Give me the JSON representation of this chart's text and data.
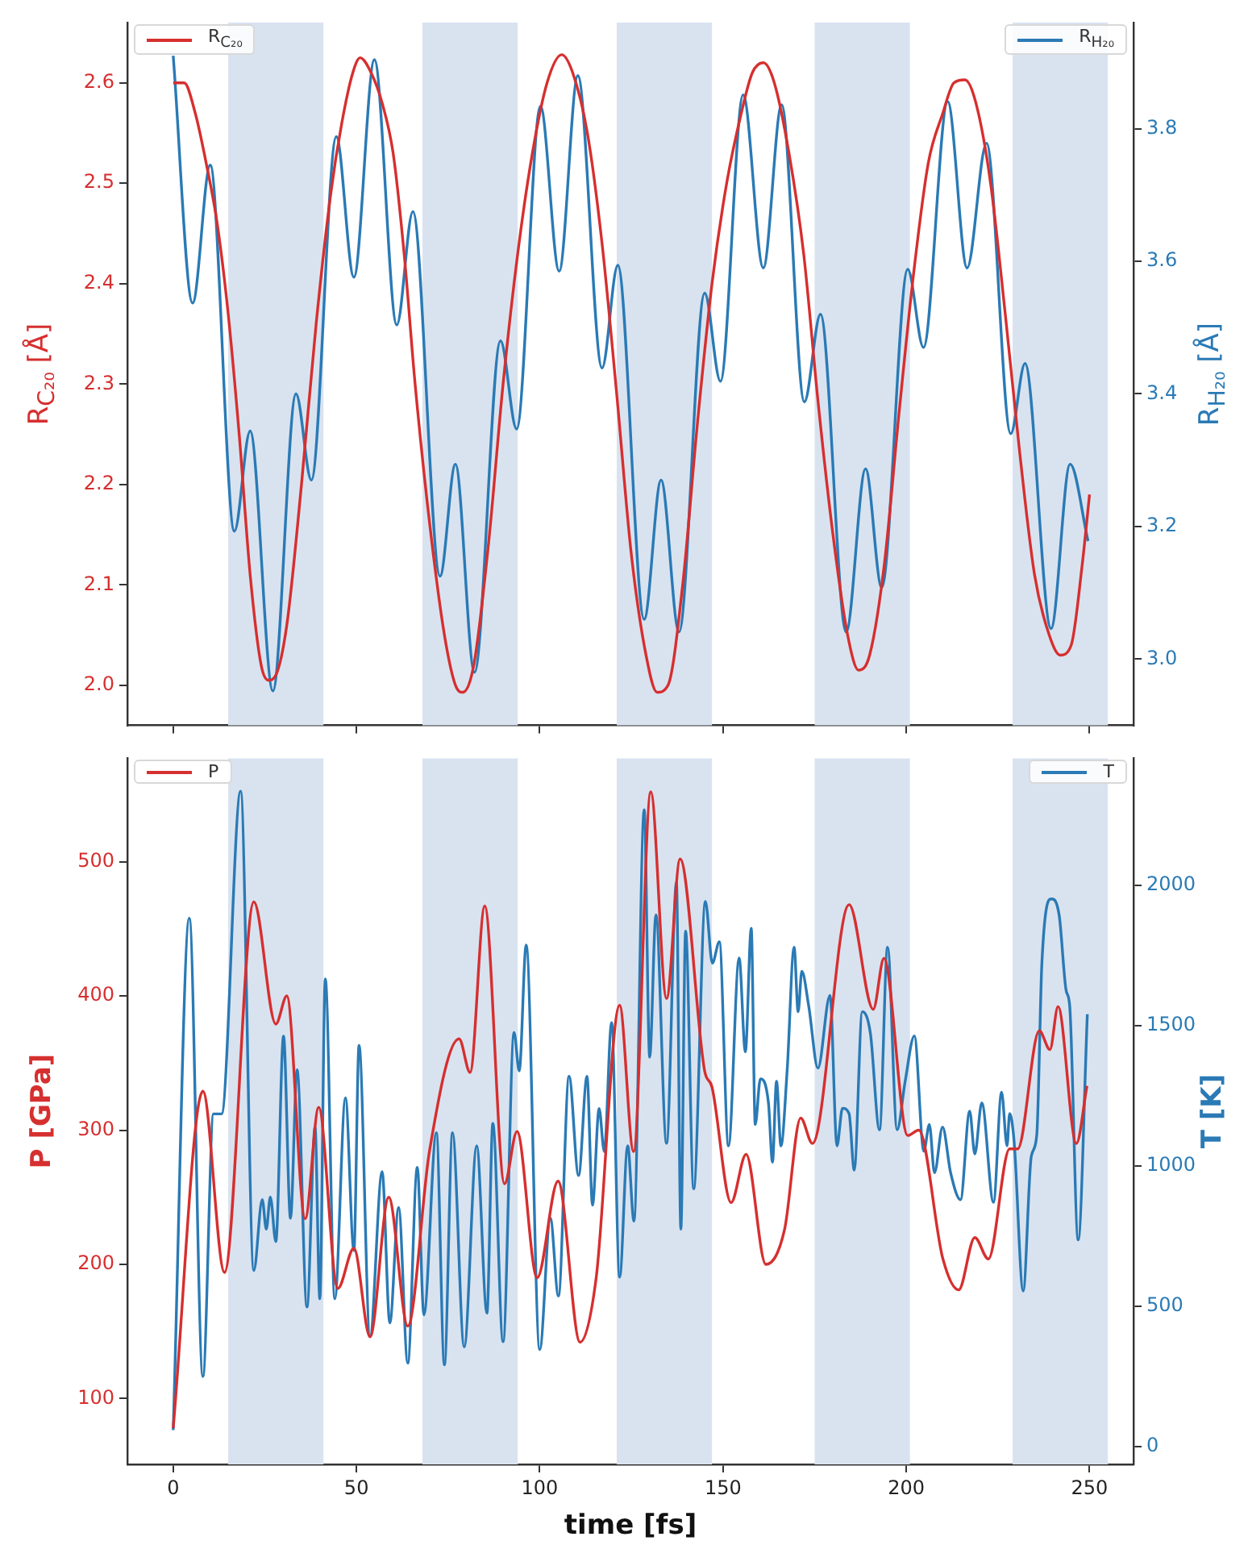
{
  "chart_data": [
    {
      "type": "line",
      "ylabel": "R$_{C₂₀}$ [Å]",
      "y2label": "R$_{H₂₀}$ [Å]",
      "xlim": [
        -12.5,
        262
      ],
      "xticks": [
        0,
        50,
        100,
        150,
        200,
        250
      ],
      "ylim": [
        1.96,
        2.66
      ],
      "yticks": [
        {
          "value": 2,
          "label": "2.0"
        },
        2.1,
        2.2,
        2.3,
        2.4,
        2.5,
        2.6
      ],
      "y2lim": [
        2.9,
        3.96
      ],
      "y2ticks": [
        {
          "value": 3,
          "label": "3.0"
        },
        3.2,
        3.4,
        3.6,
        3.8
      ],
      "tick_labels": "y",
      "grid": false,
      "legend": "top",
      "marker": "none",
      "line_style": "solid",
      "bands": [
        {
          "axis": "x",
          "from": 15,
          "to": 41,
          "color": "#d9e3f0"
        },
        {
          "axis": "x",
          "from": 68,
          "to": 94,
          "color": "#d9e3f0"
        },
        {
          "axis": "x",
          "from": 121,
          "to": 147,
          "color": "#d9e3f0"
        },
        {
          "axis": "x",
          "from": 175,
          "to": 201,
          "color": "#d9e3f0"
        },
        {
          "axis": "x",
          "from": 229,
          "to": 255,
          "color": "#d9e3f0"
        }
      ],
      "series": [
        {
          "name": "R$_{C₂₀}$",
          "color": "#d62f2f",
          "x": [
            0,
            3,
            6,
            9,
            12,
            15,
            18,
            21,
            24,
            26,
            28,
            31,
            35,
            39,
            43,
            46,
            49,
            51,
            54,
            57,
            60,
            63,
            66,
            70,
            74,
            77,
            79,
            82,
            86,
            90,
            94,
            98,
            102,
            106,
            109,
            113,
            117,
            121,
            125,
            129,
            132,
            135,
            139,
            143,
            147,
            151,
            155,
            158,
            161,
            164,
            168,
            172,
            176,
            180,
            184,
            187,
            190,
            194,
            198,
            202,
            206,
            210,
            213,
            216,
            219,
            223,
            227,
            231,
            235,
            239,
            242,
            245,
            248,
            250
          ],
          "values": [
            2.6,
            2.6,
            2.57,
            2.52,
            2.46,
            2.37,
            2.25,
            2.11,
            2.02,
            2.005,
            2.01,
            2.06,
            2.2,
            2.36,
            2.49,
            2.56,
            2.61,
            2.625,
            2.61,
            2.58,
            2.53,
            2.43,
            2.3,
            2.16,
            2.05,
            2.0,
            1.993,
            2.02,
            2.14,
            2.3,
            2.43,
            2.53,
            2.6,
            2.628,
            2.61,
            2.55,
            2.44,
            2.29,
            2.13,
            2.03,
            1.993,
            2.0,
            2.1,
            2.26,
            2.4,
            2.5,
            2.57,
            2.61,
            2.62,
            2.6,
            2.53,
            2.43,
            2.28,
            2.15,
            2.05,
            2.015,
            2.03,
            2.12,
            2.27,
            2.41,
            2.52,
            2.57,
            2.6,
            2.603,
            2.58,
            2.5,
            2.37,
            2.23,
            2.11,
            2.05,
            2.03,
            2.04,
            2.12,
            2.19
          ]
        },
        {
          "name": "R$_{H₂₀}$",
          "color": "#2a7ab5",
          "axis": "y2",
          "x": [
            0,
            5.3,
            10.1,
            16.7,
            21,
            27.2,
            33.5,
            37.7,
            44.5,
            49.3,
            54.9,
            61,
            65.4,
            72.8,
            77,
            82.2,
            89.3,
            93.7,
            100.2,
            105.3,
            110.4,
            117,
            121.3,
            128.5,
            133.1,
            138,
            145,
            149.3,
            155.5,
            161,
            166,
            172.2,
            176.6,
            183.6,
            188.9,
            193.3,
            200.4,
            204.7,
            211.3,
            216.6,
            221.9,
            228.5,
            232.4,
            239.5,
            244.7,
            249.6
          ],
          "values": [
            3.91,
            3.537,
            3.745,
            3.193,
            3.344,
            2.952,
            3.4,
            3.27,
            3.788,
            3.576,
            3.904,
            3.504,
            3.675,
            3.125,
            3.294,
            2.98,
            3.48,
            3.347,
            3.834,
            3.585,
            3.88,
            3.439,
            3.594,
            3.06,
            3.27,
            3.041,
            3.552,
            3.419,
            3.851,
            3.59,
            3.836,
            3.388,
            3.52,
            3.041,
            3.287,
            3.108,
            3.588,
            3.47,
            3.841,
            3.59,
            3.778,
            3.34,
            3.446,
            3.046,
            3.294,
            3.178
          ]
        }
      ]
    },
    {
      "type": "line",
      "xlabel": "time [fs]",
      "ylabel": "P [GPa]",
      "y2label": "T [K]",
      "xlim": [
        -12.5,
        262
      ],
      "xticks": [
        0,
        50,
        100,
        150,
        200,
        250
      ],
      "ylim": [
        51,
        577
      ],
      "yticks": [
        100,
        200,
        300,
        400,
        500
      ],
      "y2lim": [
        -63,
        2453
      ],
      "y2ticks": [
        0,
        500,
        1000,
        1500,
        2000
      ],
      "grid": false,
      "legend": "top",
      "marker": "none",
      "line_style": "solid",
      "bands": [
        {
          "axis": "x",
          "from": 15,
          "to": 41,
          "color": "#d9e3f0"
        },
        {
          "axis": "x",
          "from": 68,
          "to": 94,
          "color": "#d9e3f0"
        },
        {
          "axis": "x",
          "from": 121,
          "to": 147,
          "color": "#d9e3f0"
        },
        {
          "axis": "x",
          "from": 175,
          "to": 201,
          "color": "#d9e3f0"
        },
        {
          "axis": "x",
          "from": 229,
          "to": 255,
          "color": "#d9e3f0"
        }
      ],
      "series": [
        {
          "name": "P",
          "color": "#d62f2f",
          "x": [
            0,
            8.1,
            14,
            22,
            28,
            31,
            36,
            39.7,
            44.9,
            49.3,
            53.7,
            58.8,
            64,
            69.9,
            78,
            81,
            85,
            90.4,
            93.8,
            99.3,
            105,
            111,
            115.4,
            121.8,
            125.6,
            130.3,
            134.6,
            138.3,
            145,
            147,
            152.2,
            156.3,
            161.7,
            166.8,
            171.2,
            174.4,
            184.4,
            191,
            193.9,
            200.4,
            203.4,
            210,
            214.3,
            218.7,
            222.4,
            228.2,
            230.4,
            236.3,
            239.2,
            241.4,
            246.4,
            249.3
          ],
          "values": [
            78,
            329,
            194,
            470,
            379,
            400,
            234,
            317,
            182,
            212,
            146,
            250,
            154,
            284,
            368,
            343,
            467,
            260,
            299,
            190,
            262,
            142,
            190,
            393,
            284,
            552,
            398,
            502,
            344,
            332,
            246,
            282,
            200,
            226,
            309,
            290,
            468,
            390,
            428,
            296,
            300,
            204,
            181,
            220,
            204,
            286,
            286,
            374,
            360,
            392,
            290,
            333
          ]
        },
        {
          "name": "T",
          "color": "#2a7ab5",
          "axis": "y2",
          "x": [
            0,
            4.4,
            8.1,
            11,
            13.2,
            18.4,
            22,
            24.3,
            25.4,
            26.5,
            28,
            30.1,
            32,
            33.8,
            36.5,
            38.7,
            40,
            41.5,
            44.1,
            47,
            49.3,
            50.7,
            53.7,
            57,
            59.1,
            61.5,
            64,
            66.6,
            68.4,
            71.8,
            74,
            76.2,
            79.4,
            82.8,
            85.6,
            87.2,
            90,
            93,
            94.4,
            96.3,
            100,
            102.9,
            105.1,
            108,
            110.6,
            112.9,
            114.4,
            116.2,
            117.6,
            119.6,
            121.8,
            124,
            125.7,
            128.5,
            130,
            131.7,
            134.6,
            137.3,
            138.5,
            139.8,
            142,
            145.2,
            147.1,
            149,
            151.5,
            154.4,
            156.1,
            157.7,
            158.8,
            160.2,
            162.4,
            163.5,
            164.6,
            165.8,
            167.5,
            169.4,
            170.5,
            171.5,
            173.4,
            175.9,
            179.2,
            181.1,
            182.6,
            184.4,
            185.8,
            188,
            190.2,
            192.7,
            194.9,
            197.5,
            199.7,
            202.2,
            204.8,
            206.3,
            207.7,
            209.9,
            212.1,
            214.8,
            217.3,
            218.7,
            220.6,
            223.8,
            226,
            227.5,
            228.2,
            229.4,
            231.9,
            234.1,
            235.6,
            237,
            239.6,
            241.7,
            243.6,
            244.6,
            246.9,
            249.4
          ],
          "values": [
            59,
            1883,
            250,
            1186,
            1186,
            2336,
            628,
            880,
            775,
            890,
            731,
            1463,
            814,
            1343,
            498,
            1138,
            527,
            1667,
            527,
            1243,
            699,
            1430,
            393,
            980,
            441,
            852,
            298,
            995,
            470,
            1119,
            292,
            1119,
            355,
            1072,
            476,
            1152,
            374,
            1476,
            1339,
            1788,
            346,
            814,
            537,
            1320,
            966,
            1320,
            861,
            1205,
            1052,
            1511,
            604,
            1072,
            804,
            2270,
            1388,
            1895,
            1081,
            2010,
            775,
            1837,
            919,
            1943,
            1723,
            1799,
            1072,
            1742,
            1407,
            1847,
            1148,
            1311,
            1225,
            1014,
            1302,
            1072,
            1340,
            1780,
            1550,
            1694,
            1569,
            1349,
            1608,
            1072,
            1206,
            1187,
            986,
            1550,
            1474,
            1129,
            1780,
            1129,
            1302,
            1464,
            1053,
            1148,
            976,
            1139,
            976,
            880,
            1196,
            1043,
            1225,
            871,
            1263,
            1072,
            1187,
            1091,
            555,
            1034,
            1110,
            1723,
            1952,
            1895,
            1627,
            1569,
            737,
            1541
          ]
        }
      ]
    }
  ]
}
